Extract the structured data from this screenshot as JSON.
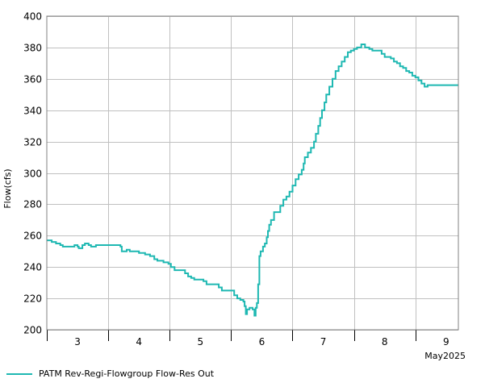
{
  "chart_data": {
    "type": "line",
    "ylabel": "Flow(cfs)",
    "ylim": [
      200,
      400
    ],
    "yticks": [
      200,
      220,
      240,
      260,
      280,
      300,
      320,
      340,
      360,
      380,
      400
    ],
    "xlim": [
      2.5,
      9.2
    ],
    "x_day_ticks": [
      3,
      4,
      5,
      6,
      7,
      8,
      9
    ],
    "x_month_label": "May2025",
    "grid": true,
    "legend_position": "bottom-left",
    "series": [
      {
        "name": "PATM Rev-Regi-Flowgroup Flow-Res Out",
        "color": "#1eb8b2",
        "step": true,
        "points": [
          [
            2.5,
            257
          ],
          [
            2.58,
            256
          ],
          [
            2.65,
            255
          ],
          [
            2.72,
            254
          ],
          [
            2.76,
            253
          ],
          [
            2.85,
            253
          ],
          [
            2.95,
            254
          ],
          [
            3.0,
            253
          ],
          [
            3.02,
            252
          ],
          [
            3.08,
            254
          ],
          [
            3.12,
            255
          ],
          [
            3.18,
            254
          ],
          [
            3.22,
            253
          ],
          [
            3.3,
            254
          ],
          [
            3.4,
            254
          ],
          [
            3.55,
            254
          ],
          [
            3.65,
            254
          ],
          [
            3.7,
            253
          ],
          [
            3.72,
            250
          ],
          [
            3.8,
            251
          ],
          [
            3.85,
            250
          ],
          [
            3.95,
            250
          ],
          [
            4.0,
            249
          ],
          [
            4.1,
            248
          ],
          [
            4.18,
            247
          ],
          [
            4.25,
            245
          ],
          [
            4.3,
            244
          ],
          [
            4.4,
            243
          ],
          [
            4.48,
            242
          ],
          [
            4.52,
            240
          ],
          [
            4.58,
            238
          ],
          [
            4.7,
            238
          ],
          [
            4.75,
            236
          ],
          [
            4.8,
            234
          ],
          [
            4.85,
            233
          ],
          [
            4.9,
            232
          ],
          [
            5.0,
            232
          ],
          [
            5.05,
            231
          ],
          [
            5.1,
            229
          ],
          [
            5.25,
            229
          ],
          [
            5.3,
            227
          ],
          [
            5.35,
            225
          ],
          [
            5.5,
            225
          ],
          [
            5.55,
            222
          ],
          [
            5.6,
            220
          ],
          [
            5.65,
            219
          ],
          [
            5.7,
            218
          ],
          [
            5.72,
            215
          ],
          [
            5.74,
            210
          ],
          [
            5.76,
            213
          ],
          [
            5.8,
            214
          ],
          [
            5.85,
            213
          ],
          [
            5.88,
            209
          ],
          [
            5.9,
            214
          ],
          [
            5.92,
            217
          ],
          [
            5.94,
            229
          ],
          [
            5.96,
            247
          ],
          [
            5.98,
            250
          ],
          [
            6.02,
            253
          ],
          [
            6.05,
            255
          ],
          [
            6.08,
            259
          ],
          [
            6.1,
            263
          ],
          [
            6.12,
            267
          ],
          [
            6.15,
            270
          ],
          [
            6.2,
            275
          ],
          [
            6.3,
            279
          ],
          [
            6.35,
            283
          ],
          [
            6.4,
            285
          ],
          [
            6.45,
            288
          ],
          [
            6.5,
            292
          ],
          [
            6.55,
            296
          ],
          [
            6.6,
            299
          ],
          [
            6.65,
            302
          ],
          [
            6.68,
            306
          ],
          [
            6.7,
            310
          ],
          [
            6.75,
            313
          ],
          [
            6.8,
            316
          ],
          [
            6.85,
            320
          ],
          [
            6.88,
            325
          ],
          [
            6.92,
            330
          ],
          [
            6.95,
            335
          ],
          [
            6.98,
            340
          ],
          [
            7.02,
            345
          ],
          [
            7.05,
            350
          ],
          [
            7.1,
            355
          ],
          [
            7.15,
            360
          ],
          [
            7.2,
            365
          ],
          [
            7.25,
            368
          ],
          [
            7.3,
            371
          ],
          [
            7.35,
            374
          ],
          [
            7.4,
            377
          ],
          [
            7.45,
            378
          ],
          [
            7.5,
            379
          ],
          [
            7.55,
            380
          ],
          [
            7.62,
            382
          ],
          [
            7.68,
            380
          ],
          [
            7.75,
            379
          ],
          [
            7.8,
            378
          ],
          [
            7.9,
            378
          ],
          [
            7.95,
            376
          ],
          [
            8.0,
            374
          ],
          [
            8.1,
            373
          ],
          [
            8.15,
            371
          ],
          [
            8.2,
            370
          ],
          [
            8.25,
            368
          ],
          [
            8.3,
            367
          ],
          [
            8.35,
            365
          ],
          [
            8.4,
            364
          ],
          [
            8.45,
            362
          ],
          [
            8.5,
            361
          ],
          [
            8.55,
            359
          ],
          [
            8.6,
            357
          ],
          [
            8.65,
            355
          ],
          [
            8.7,
            356
          ],
          [
            8.75,
            356
          ],
          [
            8.85,
            356
          ]
        ]
      }
    ]
  }
}
